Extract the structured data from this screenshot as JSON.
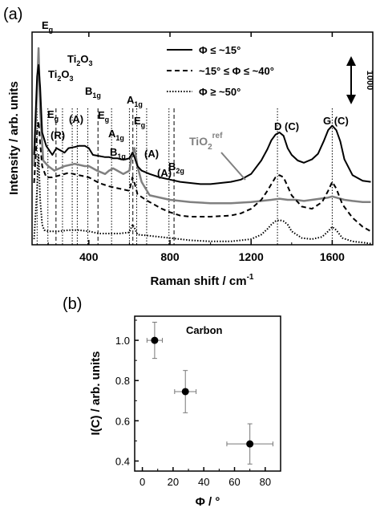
{
  "panel_labels": {
    "a": "(a)",
    "b": "(b)"
  },
  "chart_data": [
    {
      "type": "line",
      "panel": "(a)",
      "xlabel_main": "Raman shift / cm",
      "xlabel_sup": "-1",
      "ylabel": "Intensity / arb. units",
      "xlim": [
        120,
        1800
      ],
      "xticks": [
        400,
        800,
        1200,
        1600
      ],
      "yticks_shown": false,
      "scale_bar": {
        "label": "1000"
      },
      "legend": {
        "placement": "top-right",
        "entries": [
          {
            "label": "Φ ≤ ~15°",
            "style": "solid"
          },
          {
            "label": "~15° ≤ Φ ≤ ~40°",
            "style": "dashed"
          },
          {
            "label": "Φ ≥ ~50°",
            "style": "dotted"
          }
        ]
      },
      "series": [
        {
          "name": "Φ ≤ ~15°",
          "style": "solid",
          "color": "#000000",
          "x": [
            130,
            145,
            152,
            160,
            170,
            190,
            220,
            240,
            260,
            280,
            300,
            330,
            350,
            380,
            400,
            420,
            450,
            480,
            500,
            520,
            540,
            560,
            580,
            600,
            615,
            625,
            640,
            660,
            700,
            750,
            800,
            850,
            900,
            950,
            1000,
            1050,
            1100,
            1150,
            1200,
            1250,
            1280,
            1300,
            1320,
            1340,
            1360,
            1380,
            1400,
            1430,
            1460,
            1500,
            1530,
            1560,
            1580,
            1600,
            1620,
            1640,
            1660,
            1700,
            1750,
            1790
          ],
          "y": [
            0.8,
            1.5,
            1.6,
            1.4,
            1.0,
            0.88,
            0.8,
            0.86,
            0.84,
            0.82,
            0.86,
            0.87,
            0.88,
            0.88,
            0.86,
            0.8,
            0.79,
            0.78,
            0.78,
            0.77,
            0.77,
            0.76,
            0.76,
            0.77,
            0.82,
            0.78,
            0.7,
            0.66,
            0.63,
            0.6,
            0.58,
            0.56,
            0.55,
            0.54,
            0.54,
            0.55,
            0.56,
            0.58,
            0.63,
            0.75,
            0.85,
            0.93,
            0.98,
            1.0,
            0.97,
            0.86,
            0.8,
            0.75,
            0.73,
            0.76,
            0.81,
            0.93,
            1.02,
            1.06,
            1.02,
            0.92,
            0.76,
            0.62,
            0.57,
            0.56
          ]
        },
        {
          "name": "~15° ≤ Φ ≤ ~40°",
          "style": "dashed",
          "color": "#000000",
          "x": [
            130,
            145,
            152,
            160,
            170,
            190,
            220,
            260,
            300,
            350,
            400,
            450,
            500,
            550,
            600,
            615,
            625,
            640,
            680,
            720,
            760,
            800,
            850,
            900,
            1000,
            1100,
            1150,
            1200,
            1250,
            1280,
            1300,
            1320,
            1340,
            1360,
            1380,
            1400,
            1450,
            1500,
            1550,
            1580,
            1600,
            1620,
            1650,
            1700,
            1750,
            1790
          ],
          "y": [
            0.55,
            1.0,
            1.1,
            0.9,
            0.7,
            0.6,
            0.6,
            0.62,
            0.64,
            0.62,
            0.6,
            0.55,
            0.52,
            0.5,
            0.48,
            0.6,
            0.55,
            0.45,
            0.4,
            0.36,
            0.32,
            0.29,
            0.26,
            0.25,
            0.25,
            0.26,
            0.28,
            0.32,
            0.4,
            0.48,
            0.54,
            0.6,
            0.62,
            0.6,
            0.52,
            0.44,
            0.34,
            0.32,
            0.38,
            0.48,
            0.56,
            0.5,
            0.36,
            0.24,
            0.16,
            0.12
          ]
        },
        {
          "name": "Φ ≥ ~50°",
          "style": "dotted",
          "color": "#000000",
          "x": [
            130,
            145,
            152,
            160,
            170,
            180,
            200,
            250,
            300,
            350,
            400,
            450,
            500,
            550,
            600,
            615,
            625,
            640,
            700,
            800,
            900,
            1000,
            1100,
            1200,
            1250,
            1280,
            1300,
            1320,
            1340,
            1360,
            1380,
            1400,
            1450,
            1500,
            1550,
            1580,
            1600,
            1620,
            1650,
            1700,
            1750,
            1790
          ],
          "y": [
            0.05,
            0.5,
            0.8,
            0.4,
            0.18,
            0.13,
            0.12,
            0.12,
            0.13,
            0.13,
            0.12,
            0.1,
            0.1,
            0.1,
            0.11,
            0.18,
            0.15,
            0.09,
            0.08,
            0.06,
            0.04,
            0.03,
            0.03,
            0.05,
            0.09,
            0.14,
            0.18,
            0.21,
            0.22,
            0.21,
            0.18,
            0.12,
            0.06,
            0.05,
            0.07,
            0.12,
            0.16,
            0.13,
            0.06,
            0.03,
            0.02,
            0.01
          ]
        },
        {
          "name": "TiO2 ref",
          "style": "solid",
          "color": "#808080",
          "x": [
            130,
            145,
            152,
            160,
            175,
            200,
            230,
            280,
            330,
            380,
            400,
            440,
            480,
            500,
            520,
            540,
            570,
            600,
            610,
            625,
            640,
            660,
            700,
            800,
            900,
            1000,
            1100,
            1200,
            1250,
            1300,
            1340,
            1380,
            1420,
            1460,
            1500,
            1540,
            1580,
            1600,
            1620,
            1660,
            1700,
            1750,
            1790
          ],
          "y": [
            0.7,
            1.4,
            1.75,
            1.2,
            0.75,
            0.7,
            0.66,
            0.7,
            0.72,
            0.7,
            0.7,
            0.66,
            0.63,
            0.66,
            0.68,
            0.66,
            0.63,
            0.66,
            0.78,
            0.86,
            0.7,
            0.56,
            0.44,
            0.4,
            0.38,
            0.37,
            0.37,
            0.38,
            0.39,
            0.4,
            0.41,
            0.4,
            0.4,
            0.39,
            0.4,
            0.41,
            0.42,
            0.43,
            0.42,
            0.4,
            0.39,
            0.38,
            0.38
          ]
        }
      ],
      "ref_label": {
        "main": "TiO",
        "sub": "2",
        "sup": "ref"
      },
      "peak_markers": [
        {
          "x": 145,
          "style": "dotted"
        },
        {
          "x": 198,
          "style": "dotted"
        },
        {
          "x": 238,
          "style": "dashed"
        },
        {
          "x": 270,
          "style": "dotted"
        },
        {
          "x": 318,
          "style": "dotted"
        },
        {
          "x": 343,
          "style": "dotted"
        },
        {
          "x": 395,
          "style": "dotted"
        },
        {
          "x": 445,
          "style": "dashed"
        },
        {
          "x": 512,
          "style": "dotted"
        },
        {
          "x": 600,
          "style": "dotted"
        },
        {
          "x": 617,
          "style": "dashed"
        },
        {
          "x": 636,
          "style": "dotted"
        },
        {
          "x": 685,
          "style": "dotted"
        },
        {
          "x": 795,
          "style": "dotted"
        },
        {
          "x": 820,
          "style": "dashed"
        },
        {
          "x": 1330,
          "style": "dotted"
        },
        {
          "x": 1600,
          "style": "dotted"
        }
      ],
      "annotations": [
        {
          "main": "E",
          "sub": "g"
        },
        {
          "main": "Ti",
          "sub": "2",
          "tail": "O",
          "sub2": "3"
        },
        {
          "main": "Ti",
          "sub": "2",
          "tail": "O",
          "sub2": "3"
        },
        {
          "main": "E",
          "sub": "g"
        },
        {
          "main": "(R)"
        },
        {
          "main": "(A)"
        },
        {
          "main": "B",
          "sub": "1g"
        },
        {
          "main": "E",
          "sub": "g"
        },
        {
          "main": "A",
          "sub": "1g"
        },
        {
          "main": "B",
          "sub": "1g"
        },
        {
          "main": "A",
          "sub": "1g"
        },
        {
          "main": "E",
          "sub": "g"
        },
        {
          "main": "(A)"
        },
        {
          "main": "B",
          "sub": "2g"
        },
        {
          "main": "(A)"
        },
        {
          "main": "D (C)"
        },
        {
          "main": "G (C)"
        }
      ]
    },
    {
      "type": "scatter",
      "panel": "(b)",
      "title": "Carbon",
      "xlabel": "Φ / °",
      "ylabel": "I(C) / arb. units",
      "xlim": [
        -5,
        90
      ],
      "ylim": [
        0.35,
        1.12
      ],
      "xticks": [
        0,
        20,
        40,
        60,
        80
      ],
      "yticks": [
        0.4,
        0.6,
        0.8,
        1.0
      ],
      "yticklabels": [
        "0.4",
        "0.6",
        "0.8",
        "1.0"
      ],
      "points": [
        {
          "x": 8,
          "y": 1.0,
          "xerr": 5,
          "yerr": 0.09
        },
        {
          "x": 28,
          "y": 0.745,
          "xerr": 7,
          "yerr": 0.105
        },
        {
          "x": 70,
          "y": 0.485,
          "xerr": 15,
          "yerr": 0.1
        }
      ]
    }
  ]
}
